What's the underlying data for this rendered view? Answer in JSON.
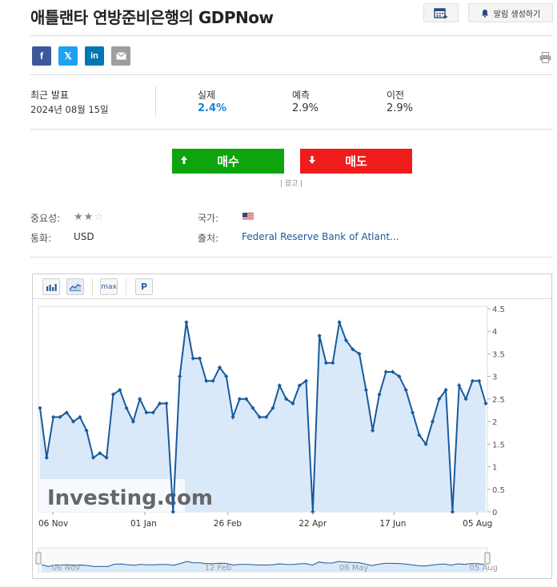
{
  "page": {
    "title": "애틀랜타 연방준비은행의 GDPNow",
    "alert_button": "알림 생성하기",
    "calendar_icon": "calendar-add-icon",
    "bell_icon": "bell-icon",
    "print_icon": "printer-icon"
  },
  "share": {
    "facebook": "f",
    "twitter": "𝕏",
    "linkedin": "in",
    "email_icon": "envelope-icon"
  },
  "release": {
    "latest_label": "최근 발표",
    "latest_date": "2024년 08월 15일",
    "actual_label": "실제",
    "actual_value": "2.4%",
    "forecast_label": "예측",
    "forecast_value": "2.9%",
    "previous_label": "이전",
    "previous_value": "2.9%",
    "actual_color": "#1a86d6"
  },
  "trade": {
    "buy_label": "매수",
    "sell_label": "매도",
    "buy_color": "#0ea40e",
    "sell_color": "#ef1c1c",
    "ad_label": "| 광고 |"
  },
  "info": {
    "importance_label": "중요성:",
    "importance_stars": 2,
    "importance_max": 3,
    "country_label": "국가:",
    "currency_label": "통화:",
    "currency_value": "USD",
    "source_label": "출처:",
    "source_value": "Federal Reserve Bank of Atlant..."
  },
  "chart_tools": {
    "bar_icon": "bar-chart-icon",
    "area_icon": "area-chart-icon",
    "max_label": "max",
    "p_label": "P"
  },
  "chart_data": {
    "type": "area",
    "watermark": "Investing.com",
    "ylim": [
      0,
      4.5
    ],
    "yticks": [
      "0",
      "0.5",
      "1",
      "1.5",
      "2",
      "2.5",
      "3",
      "3.5",
      "4",
      "4.5"
    ],
    "xlabels": [
      "06 Nov",
      "01 Jan",
      "26 Feb",
      "22 Apr",
      "17 Jun",
      "05 Aug"
    ],
    "navigator_labels": [
      "06 Nov",
      "12 Feb",
      "06 May",
      "05 Aug"
    ],
    "values": [
      2.3,
      1.2,
      2.1,
      2.1,
      2.2,
      2.0,
      2.1,
      1.8,
      1.2,
      1.3,
      1.2,
      2.6,
      2.7,
      2.3,
      2.0,
      2.5,
      2.2,
      2.2,
      2.4,
      2.4,
      0.0,
      3.0,
      4.2,
      3.4,
      3.4,
      2.9,
      2.9,
      3.2,
      3.0,
      2.1,
      2.5,
      2.5,
      2.3,
      2.1,
      2.1,
      2.3,
      2.8,
      2.5,
      2.4,
      2.8,
      2.9,
      0.0,
      3.9,
      3.3,
      3.3,
      4.2,
      3.8,
      3.6,
      3.5,
      2.7,
      1.8,
      2.6,
      3.1,
      3.1,
      3.0,
      2.7,
      2.2,
      1.7,
      1.5,
      2.0,
      2.5,
      2.7,
      0.0,
      2.8,
      2.5,
      2.9,
      2.9,
      2.4
    ],
    "line_color": "#1a5a9c",
    "fill_color": "#dae9fa",
    "grid": false
  }
}
